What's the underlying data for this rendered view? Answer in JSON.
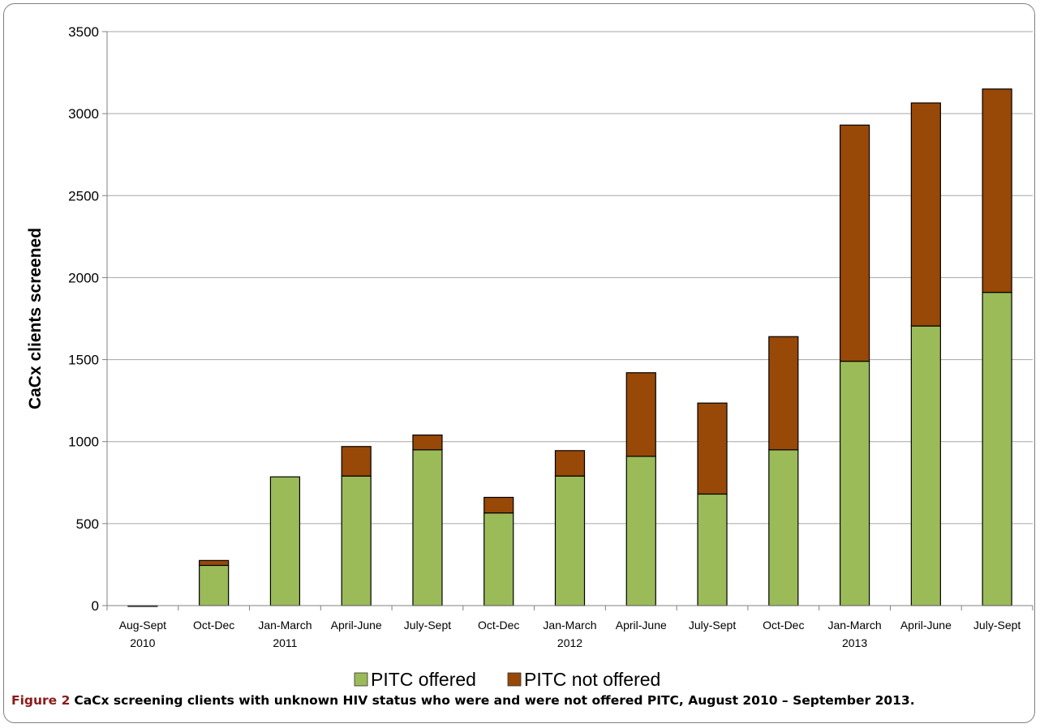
{
  "chart_data": {
    "type": "bar",
    "stacked": true,
    "title": "",
    "xlabel": "",
    "ylabel": "CaCx clients screened",
    "ylim": [
      0,
      3500
    ],
    "yticks": [
      0,
      500,
      1000,
      1500,
      2000,
      2500,
      3000,
      3500
    ],
    "grid": true,
    "legend_position": "bottom",
    "categories": [
      [
        "Aug-Sept",
        "2010"
      ],
      [
        "Oct-Dec"
      ],
      [
        "Jan-March",
        "2011"
      ],
      [
        "April-June"
      ],
      [
        "July-Sept"
      ],
      [
        "Oct-Dec"
      ],
      [
        "Jan-March",
        "2012"
      ],
      [
        "April-June"
      ],
      [
        "July-Sept"
      ],
      [
        "Oct-Dec"
      ],
      [
        "Jan-March",
        "2013"
      ],
      [
        "April-June"
      ],
      [
        "July-Sept"
      ]
    ],
    "series": [
      {
        "name": "PITC offered",
        "color": "#9bbb59",
        "values": [
          0,
          245,
          785,
          790,
          950,
          565,
          790,
          910,
          680,
          950,
          1490,
          1705,
          1910
        ]
      },
      {
        "name": "PITC not offered",
        "color": "#984807",
        "values": [
          0,
          30,
          0,
          180,
          90,
          95,
          155,
          510,
          555,
          690,
          1440,
          1360,
          1240
        ]
      }
    ]
  },
  "caption": {
    "figure_number": "Figure 2",
    "text": "CaCx screening clients with unknown HIV status who were and were not offered PITC, August 2010 – September 2013."
  }
}
